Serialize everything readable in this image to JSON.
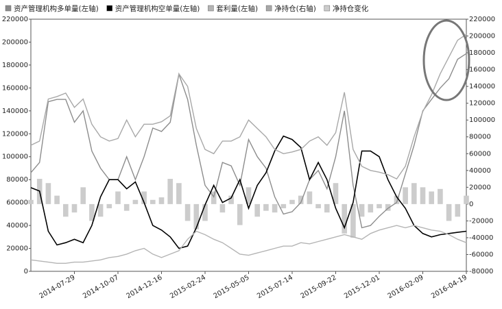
{
  "chart_data": {
    "type": "combo",
    "categories": [
      null,
      null,
      null,
      null,
      null,
      "2014-07-29",
      null,
      null,
      null,
      null,
      "2014-10-07",
      null,
      null,
      null,
      null,
      "2014-12-16",
      null,
      null,
      null,
      null,
      "2015-02-24",
      null,
      null,
      null,
      null,
      "2015-05-05",
      null,
      null,
      null,
      null,
      "2015-07-14",
      null,
      null,
      null,
      null,
      "2015-09-22",
      null,
      null,
      null,
      null,
      "2015-12-01",
      null,
      null,
      null,
      null,
      "2016-02-09",
      null,
      null,
      null,
      null,
      "2016-04-19"
    ],
    "series": [
      {
        "name": "资产管理机构多单量(左轴)",
        "type": "line",
        "color": "#8c8c8c",
        "values": [
          86000,
          95000,
          148000,
          150000,
          150000,
          130000,
          140000,
          105000,
          90000,
          80000,
          80000,
          100000,
          80000,
          100000,
          125000,
          122000,
          130000,
          172000,
          150000,
          110000,
          75000,
          65000,
          95000,
          92000,
          75000,
          115000,
          100000,
          90000,
          65000,
          50000,
          52000,
          60000,
          80000,
          88000,
          72000,
          100000,
          140000,
          75000,
          38000,
          40000,
          48000,
          55000,
          60000,
          85000,
          110000,
          140000,
          150000,
          160000,
          168000,
          185000,
          190000
        ]
      },
      {
        "name": "资产管理机构空单量(左轴)",
        "type": "line",
        "color": "#000000",
        "values": [
          73000,
          70000,
          35000,
          23000,
          25000,
          28000,
          25000,
          40000,
          65000,
          80000,
          80000,
          72000,
          78000,
          60000,
          40000,
          36000,
          30000,
          20000,
          22000,
          38000,
          58000,
          75000,
          60000,
          64000,
          80000,
          55000,
          75000,
          86000,
          105000,
          118000,
          115000,
          108000,
          80000,
          95000,
          80000,
          55000,
          38000,
          60000,
          105000,
          105000,
          100000,
          80000,
          65000,
          55000,
          40000,
          33000,
          30000,
          32000,
          33000,
          34000,
          35000
        ]
      },
      {
        "name": "套利量(左轴)",
        "type": "line",
        "color": "#b4b4b4",
        "values": [
          10000,
          9000,
          8000,
          7000,
          7000,
          8000,
          8000,
          9000,
          10000,
          12000,
          13000,
          15000,
          18000,
          20000,
          15000,
          12000,
          15000,
          18000,
          28000,
          35000,
          32000,
          28000,
          25000,
          20000,
          15000,
          14000,
          16000,
          18000,
          20000,
          22000,
          22000,
          25000,
          24000,
          26000,
          28000,
          30000,
          32000,
          30000,
          28000,
          33000,
          36000,
          38000,
          40000,
          38000,
          40000,
          38000,
          36000,
          35000,
          32000,
          28000,
          25000
        ]
      },
      {
        "name": "净持仓(右轴)",
        "type": "line",
        "axis": "y2",
        "color": "#a8a8a8",
        "values": [
          70000,
          75000,
          125000,
          128000,
          132000,
          115000,
          125000,
          95000,
          80000,
          75000,
          78000,
          100000,
          80000,
          95000,
          95000,
          98000,
          105000,
          155000,
          140000,
          90000,
          65000,
          60000,
          75000,
          75000,
          80000,
          100000,
          90000,
          80000,
          65000,
          60000,
          62000,
          65000,
          75000,
          80000,
          70000,
          85000,
          133000,
          65000,
          45000,
          40000,
          38000,
          35000,
          30000,
          45000,
          80000,
          110000,
          130000,
          155000,
          175000,
          195000,
          202000
        ]
      },
      {
        "name": "净持仓变化",
        "type": "bar",
        "axis": "y2",
        "color": "#cccccc",
        "values": [
          5000,
          30000,
          25000,
          10000,
          -15000,
          -10000,
          20000,
          -20000,
          -15000,
          -5000,
          15000,
          -8000,
          5000,
          15000,
          5000,
          8000,
          30000,
          25000,
          -20000,
          -30000,
          -20000,
          15000,
          -10000,
          10000,
          -25000,
          20000,
          -15000,
          -8000,
          -10000,
          -5000,
          5000,
          10000,
          15000,
          -5000,
          -10000,
          25000,
          -35000,
          -40000,
          -15000,
          -10000,
          -5000,
          -8000,
          10000,
          20000,
          25000,
          20000,
          15000,
          18000,
          -20000,
          -15000,
          10000
        ]
      }
    ],
    "ylim": [
      0,
      220000
    ],
    "yticks": [
      0,
      20000,
      40000,
      60000,
      80000,
      100000,
      120000,
      140000,
      160000,
      180000,
      200000,
      220000
    ],
    "y2lim": [
      -80000,
      220000
    ],
    "y2ticks": [
      -80000,
      -60000,
      -40000,
      -20000,
      0,
      20000,
      40000,
      60000,
      80000,
      100000,
      120000,
      140000,
      160000,
      180000,
      200000,
      220000
    ],
    "legend": "top"
  }
}
